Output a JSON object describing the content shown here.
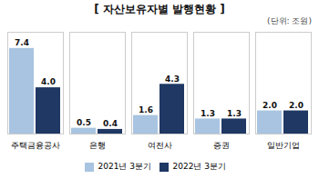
{
  "chart_data": {
    "type": "bar",
    "title": "[ 자산보유자별 발행현황 ]",
    "ylabel": "(단위: 조원)",
    "categories": [
      "주택금융공사",
      "은행",
      "여전사",
      "증권",
      "일반기업"
    ],
    "series": [
      {
        "name": "2021년 3분기",
        "color": "#a8c4e0",
        "values": [
          7.4,
          0.5,
          1.6,
          1.3,
          2.0
        ],
        "value_labels": [
          "7.4",
          "0.5",
          "1.6",
          "1.3",
          "2.0"
        ]
      },
      {
        "name": "2022년 3분기",
        "color": "#1f3864",
        "values": [
          4.0,
          0.4,
          4.3,
          1.3,
          2.0
        ],
        "value_labels": [
          "4.0",
          "0.4",
          "4.3",
          "1.3",
          "2.0"
        ]
      }
    ],
    "ylim": [
      0,
      8.8
    ],
    "grid": false,
    "legend": "bottom",
    "data_labels": true,
    "tick_labels": "x"
  }
}
